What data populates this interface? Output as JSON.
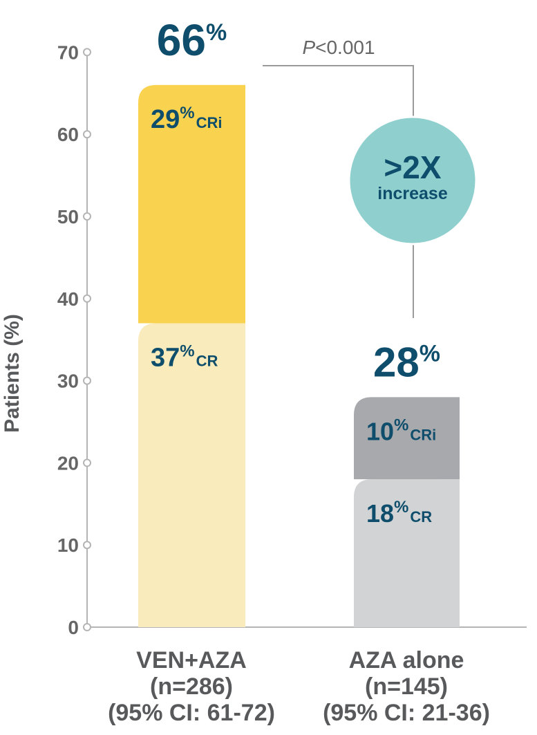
{
  "chart_data": {
    "type": "bar",
    "stacked": true,
    "ylabel": "Patients (%)",
    "ylim": [
      0,
      70
    ],
    "yticks": [
      0,
      10,
      20,
      30,
      40,
      50,
      60,
      70
    ],
    "grid": false,
    "categories": [
      {
        "name": "VEN+AZA",
        "n": "(n=286)",
        "ci": "(95% CI: 61-72)"
      },
      {
        "name": "AZA alone",
        "n": "(n=145)",
        "ci": "(95% CI: 21-36)"
      }
    ],
    "series": [
      {
        "name": "CR",
        "values": [
          37,
          18
        ],
        "colors": [
          "#f9ebbc",
          "#d1d3d4"
        ]
      },
      {
        "name": "CRi",
        "values": [
          29,
          10
        ],
        "colors": [
          "#f9d24f",
          "#a7a9ac"
        ]
      }
    ],
    "totals": [
      66,
      28
    ],
    "annotations": {
      "pvalue_letter": "P",
      "pvalue_rest": "<0.001",
      "callout_main": ">2X",
      "callout_sub": "increase",
      "callout_color": "#8fd0cf"
    }
  }
}
